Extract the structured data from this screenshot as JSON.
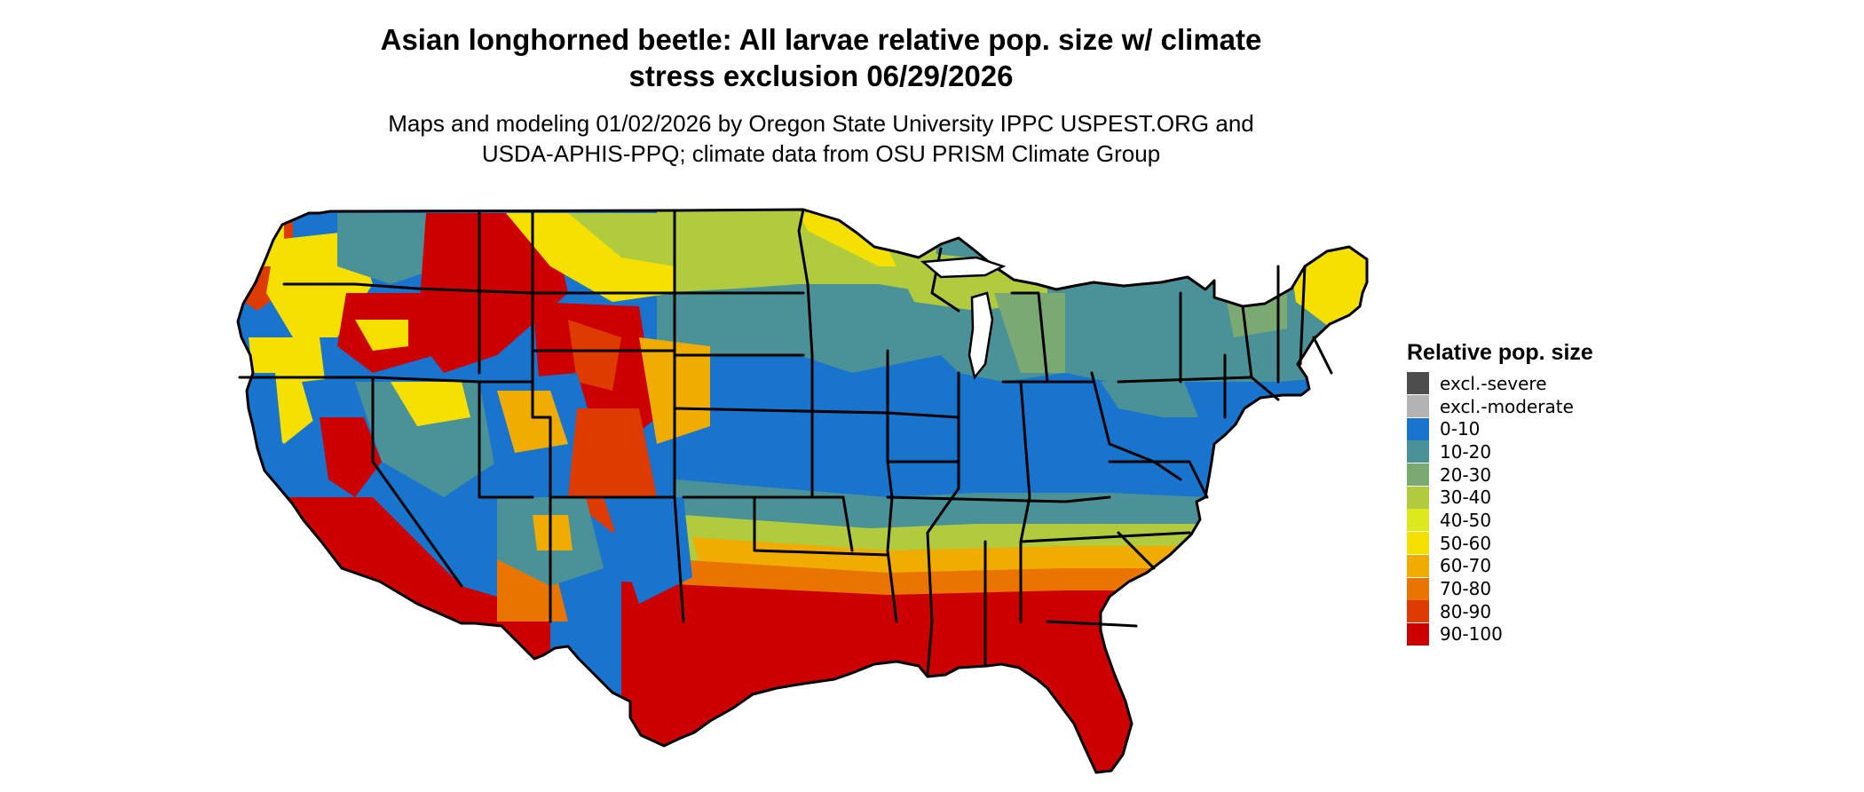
{
  "title": {
    "line1": "Asian longhorned beetle: All larvae relative pop. size w/ climate",
    "line2": "stress exclusion 06/29/2026"
  },
  "subtitle": {
    "line1": "Maps and modeling 01/02/2026 by Oregon State University IPPC USPEST.ORG and",
    "line2": "USDA-APHIS-PPQ; climate data from OSU PRISM Climate Group"
  },
  "legend": {
    "title": "Relative pop. size",
    "items": [
      {
        "label": "excl.-severe",
        "color": "#4d4d4d"
      },
      {
        "label": "excl.-moderate",
        "color": "#b3b3b3"
      },
      {
        "label": "0-10",
        "color": "#1874cd"
      },
      {
        "label": "10-20",
        "color": "#4a9298"
      },
      {
        "label": "20-30",
        "color": "#7aaa72"
      },
      {
        "label": "30-40",
        "color": "#b0cc3e"
      },
      {
        "label": "40-50",
        "color": "#dde81e"
      },
      {
        "label": "50-60",
        "color": "#f5e000"
      },
      {
        "label": "60-70",
        "color": "#f0ac00"
      },
      {
        "label": "70-80",
        "color": "#ea7400"
      },
      {
        "label": "80-90",
        "color": "#dd3b00"
      },
      {
        "label": "90-100",
        "color": "#cc0000"
      }
    ]
  },
  "map": {
    "region": "contiguous-united-states",
    "boundaries": "state-borders"
  }
}
